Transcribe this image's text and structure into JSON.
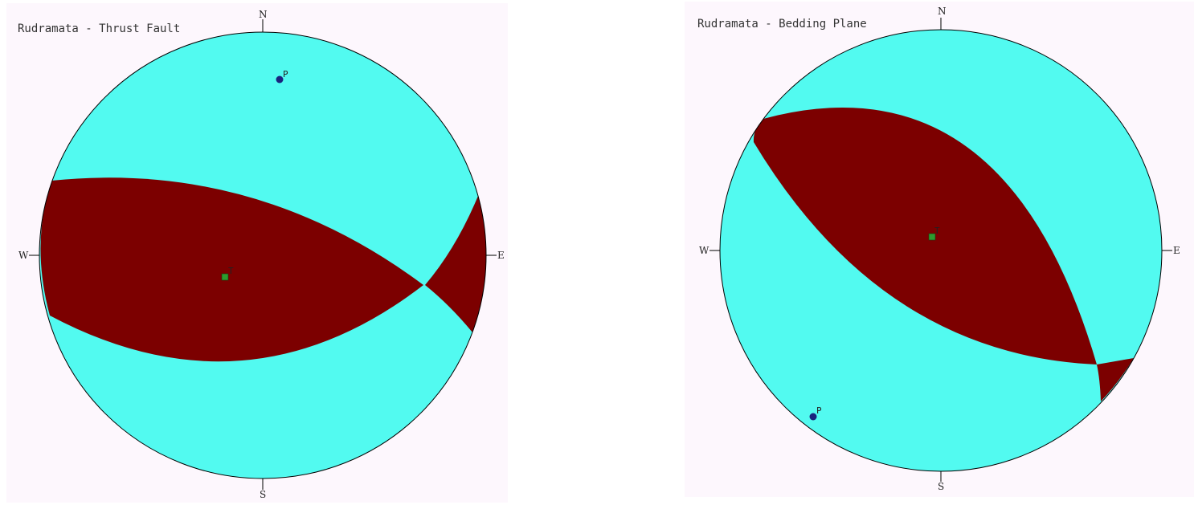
{
  "plots": [
    {
      "id": "left",
      "title": "Rudramata - Thrust Fault",
      "compass": {
        "north": "N",
        "south": "S",
        "east": "E",
        "west": "W"
      },
      "markers": [
        {
          "label": "P",
          "kind": "pressure-axis"
        },
        {
          "label": "T",
          "kind": "tension-axis"
        }
      ]
    },
    {
      "id": "right",
      "title": "Rudramata - Bedding Plane",
      "compass": {
        "north": "N",
        "south": "S",
        "east": "E",
        "west": "W"
      },
      "markers": [
        {
          "label": "P",
          "kind": "pressure-axis"
        },
        {
          "label": "T",
          "kind": "tension-axis"
        }
      ]
    }
  ],
  "colors": {
    "background": "#fdf7fd",
    "sphere": "#52faf0",
    "compression": "#7c0000",
    "outline": "#000000",
    "p_marker": "#1a237e",
    "t_marker": "#2e9b2e"
  }
}
